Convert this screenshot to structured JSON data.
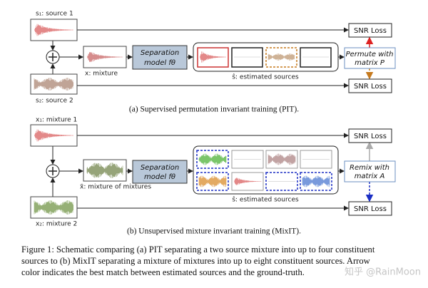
{
  "panel_a": {
    "source_1": "s₁: source 1",
    "source_2": "s₂: source 2",
    "mixture": "x: mixture",
    "model_line_1": "Separation",
    "model_line_2": "model fθ",
    "estimated": "ŝ: estimated sources",
    "permute_line_1": "Permute with",
    "permute_line_2": "matrix P",
    "loss_top": "SNR Loss",
    "loss_bottom": "SNR Loss",
    "caption": "(a) Supervised permutation invariant training (PIT)."
  },
  "panel_b": {
    "mixture_1": "x₁: mixture 1",
    "mixture_2": "x₂: mixture 2",
    "mixture": "x̄: mixture of mixtures",
    "model_line_1": "Separation",
    "model_line_2": "model fθ",
    "estimated": "ŝ: estimated sources",
    "remix_line_1": "Remix with",
    "remix_line_2": "matrix A",
    "loss_top": "SNR Loss",
    "loss_bottom": "SNR Loss",
    "caption": "(b) Unsupervised mixture invariant training (MixIT)."
  },
  "figure_caption": [
    "Figure 1: Schematic comparing (a) PIT separating a two source mixture into up to four constituent",
    "sources to (b) MixIT separating a mixture of mixtures into up to eight constituent sources. Arrow",
    "color indicates the best match between estimated sources and the ground-truth."
  ],
  "watermark": "知乎 @RainMoon"
}
